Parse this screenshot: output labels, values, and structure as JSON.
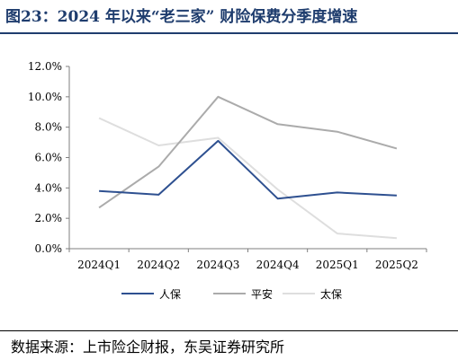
{
  "figure": {
    "title": "图23：2024 年以来“老三家” 财险保费分季度增速",
    "source": "数据来源：上市险企财报，东吴证券研究所"
  },
  "colors": {
    "title": "#1f3d6e",
    "axis": "#7f7f7f",
    "人保": "#2e5090",
    "平安": "#ababab",
    "太保": "#dedede"
  },
  "chart_data": {
    "type": "line",
    "categories": [
      "2024Q1",
      "2024Q2",
      "2024Q3",
      "2024Q4",
      "2025Q1",
      "2025Q2"
    ],
    "series": [
      {
        "name": "人保",
        "values": [
          3.8,
          3.55,
          7.1,
          3.3,
          3.7,
          3.5
        ]
      },
      {
        "name": "平安",
        "values": [
          2.7,
          5.4,
          10.0,
          8.2,
          7.7,
          6.6
        ]
      },
      {
        "name": "太保",
        "values": [
          8.6,
          6.8,
          7.3,
          3.9,
          1.0,
          0.7
        ]
      }
    ],
    "ylim": [
      0,
      12
    ],
    "yticks": [
      "0.0%",
      "2.0%",
      "4.0%",
      "6.0%",
      "8.0%",
      "10.0%",
      "12.0%"
    ],
    "grid": false,
    "legend_position": "bottom"
  }
}
